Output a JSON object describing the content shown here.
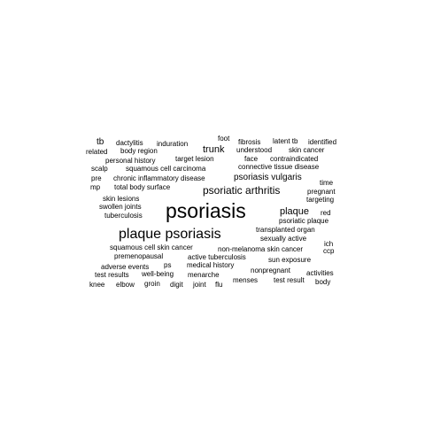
{
  "words": [
    {
      "text": "psoriasis",
      "color": "#000000"
    },
    {
      "text": "plaque psoriasis",
      "color": "#000000"
    },
    {
      "text": "psoriatic arthritis",
      "color": "#000000"
    },
    {
      "text": "trunk",
      "color": "#000000"
    },
    {
      "text": "plaque",
      "color": "#000000"
    },
    {
      "text": "psoriasis vulgaris",
      "color": "#000000"
    },
    {
      "text": "tb",
      "color": "#000000"
    },
    {
      "text": "dactylitis",
      "color": "#000000"
    },
    {
      "text": "induration",
      "color": "#000000"
    },
    {
      "text": "foot",
      "color": "#000000"
    },
    {
      "text": "fibrosis",
      "color": "#000000"
    },
    {
      "text": "latent tb",
      "color": "#000000"
    },
    {
      "text": "identified",
      "color": "#000000"
    },
    {
      "text": "related",
      "color": "#000000"
    },
    {
      "text": "body region",
      "color": "#000000"
    },
    {
      "text": "understood",
      "color": "#000000"
    },
    {
      "text": "skin cancer",
      "color": "#000000"
    },
    {
      "text": "personal history",
      "color": "#000000"
    },
    {
      "text": "target lesion",
      "color": "#000000"
    },
    {
      "text": "face",
      "color": "#000000"
    },
    {
      "text": "contraindicated",
      "color": "#000000"
    },
    {
      "text": "scalp",
      "color": "#000000"
    },
    {
      "text": "squamous cell carcinoma",
      "color": "#000000"
    },
    {
      "text": "connective tissue disease",
      "color": "#000000"
    },
    {
      "text": "pre",
      "color": "#000000"
    },
    {
      "text": "chronic inflammatory disease",
      "color": "#000000"
    },
    {
      "text": "time",
      "color": "#000000"
    },
    {
      "text": "mp",
      "color": "#000000"
    },
    {
      "text": "total body surface",
      "color": "#000000"
    },
    {
      "text": "pregnant",
      "color": "#000000"
    },
    {
      "text": "skin lesions",
      "color": "#000000"
    },
    {
      "text": "targeting",
      "color": "#000000"
    },
    {
      "text": "swollen joints",
      "color": "#000000"
    },
    {
      "text": "red",
      "color": "#000000"
    },
    {
      "text": "tuberculosis",
      "color": "#000000"
    },
    {
      "text": "psoriatic plaque",
      "color": "#000000"
    },
    {
      "text": "transplanted organ",
      "color": "#000000"
    },
    {
      "text": "sexually active",
      "color": "#000000"
    },
    {
      "text": "ich",
      "color": "#000000"
    },
    {
      "text": "squamous cell skin cancer",
      "color": "#000000"
    },
    {
      "text": "non-melanoma skin cancer",
      "color": "#000000"
    },
    {
      "text": "ccp",
      "color": "#000000"
    },
    {
      "text": "premenopausal",
      "color": "#000000"
    },
    {
      "text": "active tuberculosis",
      "color": "#000000"
    },
    {
      "text": "sun exposure",
      "color": "#000000"
    },
    {
      "text": "adverse events",
      "color": "#000000"
    },
    {
      "text": "ps",
      "color": "#000000"
    },
    {
      "text": "medical history",
      "color": "#000000"
    },
    {
      "text": "nonpregnant",
      "color": "#000000"
    },
    {
      "text": "activities",
      "color": "#000000"
    },
    {
      "text": "test results",
      "color": "#000000"
    },
    {
      "text": "well-being",
      "color": "#000000"
    },
    {
      "text": "menarche",
      "color": "#000000"
    },
    {
      "text": "menses",
      "color": "#000000"
    },
    {
      "text": "test result",
      "color": "#000000"
    },
    {
      "text": "body",
      "color": "#000000"
    },
    {
      "text": "knee",
      "color": "#000000"
    },
    {
      "text": "elbow",
      "color": "#000000"
    },
    {
      "text": "groin",
      "color": "#000000"
    },
    {
      "text": "digit",
      "color": "#000000"
    },
    {
      "text": "joint",
      "color": "#000000"
    },
    {
      "text": "flu",
      "color": "#000000"
    }
  ]
}
